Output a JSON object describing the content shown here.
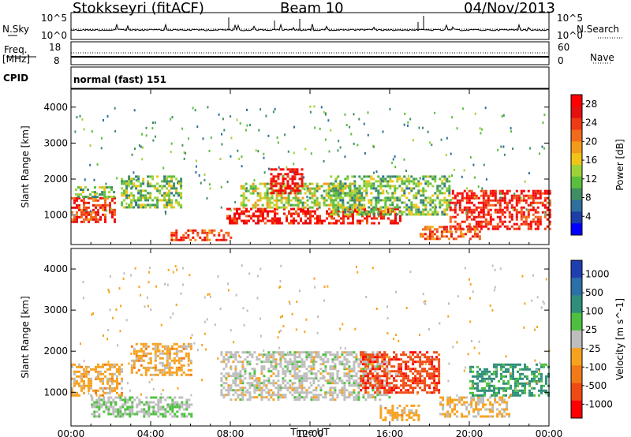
{
  "header": {
    "station": "Stokkseyri (fitACF)",
    "beam": "Beam 10",
    "date": "04/Nov/2013"
  },
  "strip_panels": {
    "nsky_label": "N.Sky",
    "nsearch_label": "N.Search",
    "freq_label_line1": "Freq.",
    "freq_label_line2": "[MHz]",
    "nave_label": "Nave",
    "cpid_label": "CPID",
    "nsky_ticks": [
      "10^5",
      "10^0"
    ],
    "nsearch_ticks": [
      "10^5",
      "10^0"
    ],
    "freq_ticks": [
      "18",
      "8"
    ],
    "nave_ticks": [
      "60",
      "0"
    ],
    "cpid_value": "normal (fast) 151"
  },
  "colors": {
    "power_scale": [
      "#0000ff",
      "#1c3ea6",
      "#2e6f9c",
      "#3f8f63",
      "#5bbf3e",
      "#9ed23a",
      "#f0c419",
      "#f29a1b",
      "#f26a1b",
      "#ef3a16",
      "#e60f0f",
      "#ff0000"
    ],
    "velocity_scale": [
      "#1f3fb0",
      "#2d6fa8",
      "#2f8f7a",
      "#4ec040",
      "#bdbdbd",
      "#f7a21f",
      "#f07a1a",
      "#f04a14",
      "#ff0000"
    ]
  },
  "chart_data": [
    {
      "type": "heatmap",
      "title": "",
      "xlabel": "Time UT",
      "ylabel": "Slant Range [km]",
      "colorbar_label": "Power [dB]",
      "xlim": [
        "00:00",
        "24:00"
      ],
      "xticks": [
        "00:00",
        "04:00",
        "08:00",
        "12:00",
        "16:00",
        "20:00",
        "00:00"
      ],
      "ylim": [
        180,
        4500
      ],
      "yticks": [
        1000,
        2000,
        3000,
        4000
      ],
      "colorbar_ticks": [
        4,
        8,
        12,
        16,
        20,
        24,
        28
      ],
      "colorbar_range": [
        0,
        30
      ],
      "backscatter_regions": [
        {
          "t_start": 0.0,
          "t_end": 2.2,
          "range_min": 800,
          "range_max": 1500,
          "power": 24
        },
        {
          "t_start": 0.2,
          "t_end": 2.2,
          "range_min": 1500,
          "range_max": 1800,
          "power": 12
        },
        {
          "t_start": 2.5,
          "t_end": 5.5,
          "range_min": 1200,
          "range_max": 2100,
          "power": 12
        },
        {
          "t_start": 5.0,
          "t_end": 8.0,
          "range_min": 300,
          "range_max": 600,
          "power": 24
        },
        {
          "t_start": 7.8,
          "t_end": 16.5,
          "range_min": 800,
          "range_max": 1200,
          "power": 26
        },
        {
          "t_start": 8.5,
          "t_end": 14.5,
          "range_min": 1200,
          "range_max": 1900,
          "power": 14
        },
        {
          "t_start": 10.0,
          "t_end": 11.6,
          "range_min": 1600,
          "range_max": 2300,
          "power": 27
        },
        {
          "t_start": 13.0,
          "t_end": 19.0,
          "range_min": 1000,
          "range_max": 2100,
          "power": 12
        },
        {
          "t_start": 19.0,
          "t_end": 24.0,
          "range_min": 600,
          "range_max": 1700,
          "power": 26
        },
        {
          "t_start": 17.5,
          "t_end": 20.5,
          "range_min": 350,
          "range_max": 700,
          "power": 22
        }
      ]
    },
    {
      "type": "heatmap",
      "title": "",
      "xlabel": "Time UT",
      "ylabel": "Slant Range [km]",
      "colorbar_label": "Velocity [m s^-1]",
      "xlim": [
        "00:00",
        "24:00"
      ],
      "xticks": [
        "00:00",
        "04:00",
        "08:00",
        "12:00",
        "16:00",
        "20:00",
        "00:00"
      ],
      "ylim": [
        180,
        4500
      ],
      "yticks": [
        1000,
        2000,
        3000,
        4000
      ],
      "colorbar_ticks": [
        1000,
        500,
        100,
        25,
        -25,
        -100,
        -500,
        -1000
      ],
      "colorbar_range": [
        -1000,
        1000
      ],
      "backscatter_regions": [
        {
          "t_start": 0.0,
          "t_end": 2.5,
          "range_min": 900,
          "range_max": 1700,
          "velocity": -200
        },
        {
          "t_start": 3.0,
          "t_end": 6.0,
          "range_min": 1400,
          "range_max": 2200,
          "velocity": -200
        },
        {
          "t_start": 1.0,
          "t_end": 6.0,
          "range_min": 400,
          "range_max": 900,
          "velocity": 100
        },
        {
          "t_start": 7.5,
          "t_end": 16.0,
          "range_min": 800,
          "range_max": 2000,
          "velocity": 0
        },
        {
          "t_start": 14.5,
          "t_end": 18.5,
          "range_min": 1000,
          "range_max": 2000,
          "velocity": -700
        },
        {
          "t_start": 15.5,
          "t_end": 17.5,
          "range_min": 350,
          "range_max": 700,
          "velocity": -200
        },
        {
          "t_start": 18.5,
          "t_end": 22.0,
          "range_min": 400,
          "range_max": 900,
          "velocity": -150
        },
        {
          "t_start": 20.0,
          "t_end": 24.0,
          "range_min": 900,
          "range_max": 1700,
          "velocity": 400
        }
      ]
    }
  ]
}
